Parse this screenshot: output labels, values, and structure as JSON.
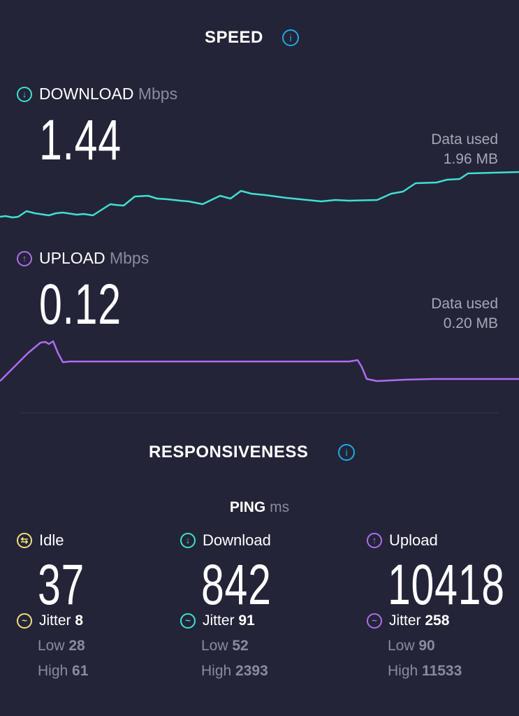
{
  "speed": {
    "title": "SPEED",
    "info_icon": "info-icon",
    "download": {
      "label": "DOWNLOAD",
      "unit": "Mbps",
      "value": "1.44",
      "data_used_label": "Data used",
      "data_used": "1.96 MB",
      "color": "#3fe0d0"
    },
    "upload": {
      "label": "UPLOAD",
      "unit": "Mbps",
      "value": "0.12",
      "data_used_label": "Data used",
      "data_used": "0.20 MB",
      "color": "#b06cf0"
    }
  },
  "responsiveness": {
    "title": "RESPONSIVENESS",
    "ping_label": "PING",
    "ping_unit": "ms",
    "columns": [
      {
        "label": "Idle",
        "value": "37",
        "jitter_label": "Jitter",
        "jitter": "8",
        "low_label": "Low",
        "low": "28",
        "high_label": "High",
        "high": "61",
        "color": "#f0e07a"
      },
      {
        "label": "Download",
        "value": "842",
        "jitter_label": "Jitter",
        "jitter": "91",
        "low_label": "Low",
        "low": "52",
        "high_label": "High",
        "high": "2393",
        "color": "#3fe0d0"
      },
      {
        "label": "Upload",
        "value": "10418",
        "jitter_label": "Jitter",
        "jitter": "258",
        "low_label": "Low",
        "low": "90",
        "high_label": "High",
        "high": "11533",
        "color": "#b06cf0"
      }
    ]
  }
}
